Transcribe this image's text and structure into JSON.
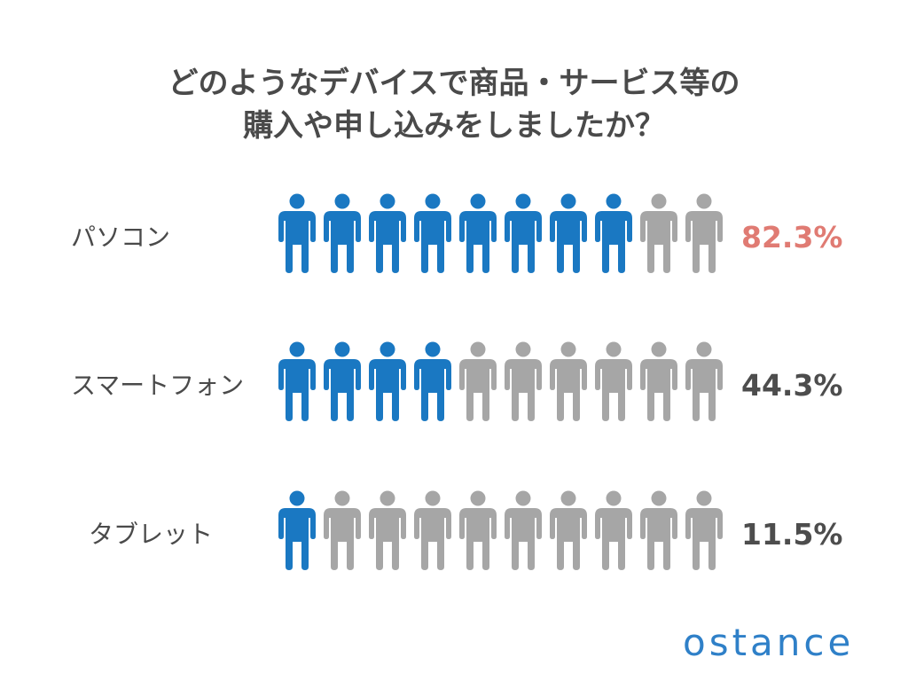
{
  "title_lines": [
    "どのようなデバイスで商品・サービス等の",
    "購入や申し込みをしましたか？"
  ],
  "logo_text": "ostance",
  "colors": {
    "filled": "#1a78c2",
    "empty": "#a6a6a6",
    "highlight_value": "#e07b73",
    "normal_value": "#4d4d4d",
    "logo": "#2f80c8"
  },
  "chart_data": {
    "type": "pictograph",
    "icon": "person-icon",
    "icons_per_row": 10,
    "title": "どのようなデバイスで商品・サービス等の購入や申し込みをしましたか？",
    "categories": [
      "パソコン",
      "スマートフォン",
      "タブレット"
    ],
    "values": [
      82.3,
      44.3,
      11.5
    ],
    "value_labels": [
      "82.3%",
      "44.3%",
      "11.5%"
    ],
    "filled_icons": [
      8,
      4,
      1
    ],
    "unit": "%"
  }
}
